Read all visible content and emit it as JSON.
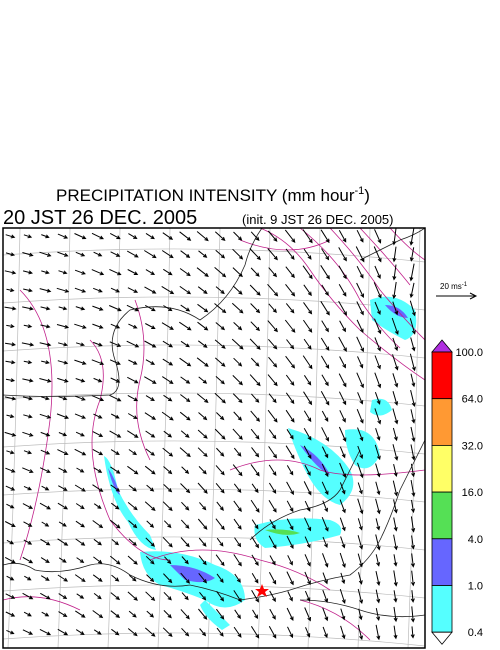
{
  "header": {
    "title": "PRECIPITATION INTENSITY (mm hour",
    "title_superscript": "-1",
    "title_end": ")",
    "valid_time": "20 JST 26 DEC. 2005",
    "init_time": "(init. 9 JST 26 DEC. 2005)"
  },
  "wind_legend": {
    "label": "20 ms",
    "label_superscript": "-1"
  },
  "colorbar": {
    "labels": [
      "100.0",
      "64.0",
      "32.0",
      "16.0",
      "4.0",
      "1.0",
      "0.4"
    ],
    "colors": [
      "#b030e0",
      "#ff0000",
      "#ff9933",
      "#ffff66",
      "#55e055",
      "#6666ff",
      "#55ffff",
      "#ffffff"
    ]
  }
}
